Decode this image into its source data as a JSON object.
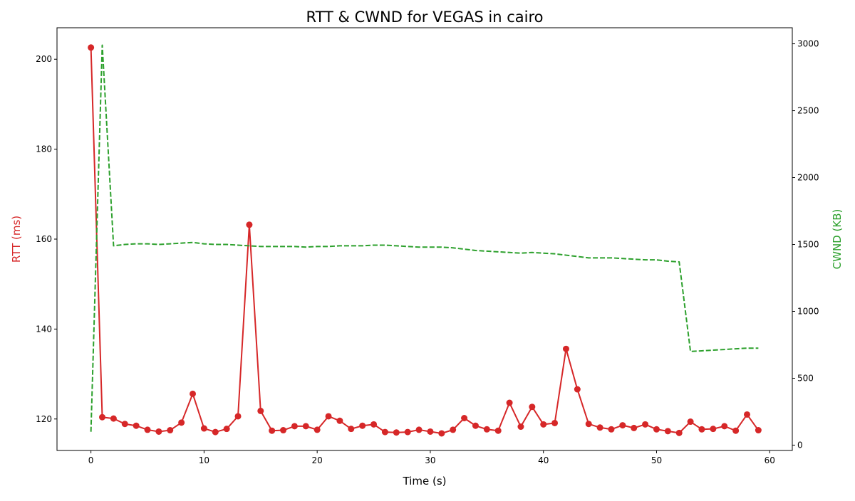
{
  "chart_data": {
    "type": "line",
    "title": "RTT & CWND for VEGAS in cairo",
    "xlabel": "Time (s)",
    "ylabel_left": "RTT (ms)",
    "ylabel_right": "CWND (KB)",
    "xlim": [
      -3,
      62
    ],
    "ylim_left": [
      113,
      207
    ],
    "ylim_right": [
      -40,
      3120
    ],
    "x_ticks": [
      0,
      10,
      20,
      30,
      40,
      50,
      60
    ],
    "y_left_ticks": [
      120,
      140,
      160,
      180,
      200
    ],
    "y_right_ticks": [
      0,
      500,
      1000,
      1500,
      2000,
      2500,
      3000
    ],
    "grid": false,
    "colors": {
      "rtt": "#d62728",
      "cwnd": "#2ca02c",
      "axis": "#000000"
    },
    "series": [
      {
        "key": "rtt",
        "axis": "left",
        "style": "solid-markers",
        "x": [
          0,
          1,
          2,
          3,
          4,
          5,
          6,
          7,
          8,
          9,
          10,
          11,
          12,
          13,
          14,
          15,
          16,
          17,
          18,
          19,
          20,
          21,
          22,
          23,
          24,
          25,
          26,
          27,
          28,
          29,
          30,
          31,
          32,
          33,
          34,
          35,
          36,
          37,
          38,
          39,
          40,
          41,
          42,
          43,
          44,
          45,
          46,
          47,
          48,
          49,
          50,
          51,
          52,
          53,
          54,
          55,
          56,
          57,
          58,
          59
        ],
        "values": [
          202.6,
          120.4,
          120.1,
          118.9,
          118.5,
          117.6,
          117.2,
          117.5,
          119.2,
          125.6,
          117.9,
          117.1,
          117.8,
          120.6,
          163.2,
          121.8,
          117.4,
          117.5,
          118.4,
          118.4,
          117.6,
          120.6,
          119.6,
          117.8,
          118.5,
          118.8,
          117.1,
          117.0,
          117.1,
          117.6,
          117.2,
          116.8,
          117.6,
          120.2,
          118.5,
          117.7,
          117.4,
          123.6,
          118.3,
          122.7,
          118.8,
          119.1,
          135.6,
          126.6,
          118.9,
          118.1,
          117.7,
          118.6,
          118.0,
          118.8,
          117.7,
          117.3,
          116.9,
          119.4,
          117.7,
          117.8,
          118.4,
          117.4,
          121.0,
          117.5
        ]
      },
      {
        "key": "cwnd",
        "axis": "right",
        "style": "dashed",
        "x": [
          0,
          1,
          2,
          3,
          4,
          5,
          6,
          7,
          8,
          9,
          10,
          11,
          12,
          13,
          14,
          15,
          16,
          17,
          18,
          19,
          20,
          21,
          22,
          23,
          24,
          25,
          26,
          27,
          28,
          29,
          30,
          31,
          32,
          33,
          34,
          35,
          36,
          37,
          38,
          39,
          40,
          41,
          42,
          43,
          44,
          45,
          46,
          47,
          48,
          49,
          50,
          51,
          52,
          53,
          54,
          55,
          56,
          57,
          58,
          59
        ],
        "values": [
          100,
          2990,
          1490,
          1500,
          1505,
          1505,
          1500,
          1505,
          1510,
          1515,
          1505,
          1500,
          1500,
          1495,
          1490,
          1485,
          1485,
          1485,
          1485,
          1480,
          1485,
          1485,
          1490,
          1490,
          1490,
          1495,
          1495,
          1490,
          1485,
          1480,
          1480,
          1480,
          1475,
          1465,
          1455,
          1450,
          1445,
          1440,
          1435,
          1440,
          1435,
          1430,
          1420,
          1410,
          1400,
          1400,
          1400,
          1395,
          1390,
          1385,
          1385,
          1375,
          1370,
          700,
          705,
          710,
          715,
          720,
          725,
          725
        ]
      }
    ]
  }
}
